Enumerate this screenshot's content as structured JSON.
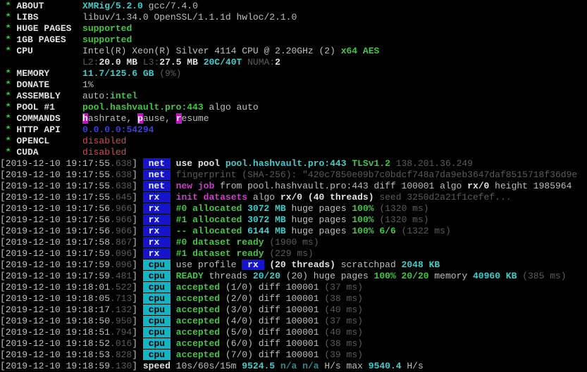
{
  "palette": {
    "background": "#000000",
    "w": "#bfbfbf",
    "wb": "#e2e2e2",
    "g": "#3fbf3f",
    "gb": "#44c644",
    "c": "#35b0b0",
    "cb": "#42cccc",
    "d": "#5c5c5c",
    "dc": "#2e8b8b",
    "mb": "#cc3fcc",
    "r": "#cf4f4f",
    "bl": "#4040d0",
    "bnetBg": "#1414cc",
    "bnetFg": "#efefef",
    "bcpuBg": "#12b5c3",
    "bcpuFg": "#000000",
    "bmagBg": "#c314c3",
    "bmagFg": "#efefef"
  },
  "terminal": {
    "lines": [
      {
        "segments": [
          {
            "s": "gb",
            "t": " * "
          },
          {
            "s": "wb",
            "t": "ABOUT       "
          },
          {
            "s": "cb",
            "t": "XMRig/5.2.0"
          },
          {
            "s": "w",
            "t": " gcc/7.4.0"
          }
        ]
      },
      {
        "segments": [
          {
            "s": "gb",
            "t": " * "
          },
          {
            "s": "wb",
            "t": "LIBS        "
          },
          {
            "s": "w",
            "t": "libuv/1.34.0 OpenSSL/1.1.1d hwloc/2.1.0"
          }
        ]
      },
      {
        "segments": [
          {
            "s": "gb",
            "t": " * "
          },
          {
            "s": "wb",
            "t": "HUGE PAGES  "
          },
          {
            "s": "gb",
            "t": "supported"
          }
        ]
      },
      {
        "segments": [
          {
            "s": "gb",
            "t": " * "
          },
          {
            "s": "wb",
            "t": "1GB PAGES   "
          },
          {
            "s": "gb",
            "t": "supported"
          }
        ]
      },
      {
        "segments": [
          {
            "s": "gb",
            "t": " * "
          },
          {
            "s": "wb",
            "t": "CPU         "
          },
          {
            "s": "w",
            "t": "Intel(R) Xeon(R) Silver 4114 CPU @ 2.20GHz (2) "
          },
          {
            "s": "gb",
            "t": "x64 AES"
          }
        ]
      },
      {
        "segments": [
          {
            "s": "w",
            "t": "               "
          },
          {
            "s": "d",
            "t": "L2:"
          },
          {
            "s": "wb",
            "t": "20.0 MB "
          },
          {
            "s": "d",
            "t": "L3:"
          },
          {
            "s": "wb",
            "t": "27.5 MB "
          },
          {
            "s": "cb",
            "t": "20C/40T "
          },
          {
            "s": "d",
            "t": "NUMA:"
          },
          {
            "s": "wb",
            "t": "2"
          }
        ]
      },
      {
        "segments": [
          {
            "s": "gb",
            "t": " * "
          },
          {
            "s": "wb",
            "t": "MEMORY      "
          },
          {
            "s": "cb",
            "t": "11.7/125.6 GB "
          },
          {
            "s": "d",
            "t": "(9%)"
          }
        ]
      },
      {
        "segments": [
          {
            "s": "gb",
            "t": " * "
          },
          {
            "s": "wb",
            "t": "DONATE      "
          },
          {
            "s": "w",
            "t": "1%"
          }
        ]
      },
      {
        "segments": [
          {
            "s": "gb",
            "t": " * "
          },
          {
            "s": "wb",
            "t": "ASSEMBLY    "
          },
          {
            "s": "w",
            "t": "auto:"
          },
          {
            "s": "gb",
            "t": "intel"
          }
        ]
      },
      {
        "segments": [
          {
            "s": "gb",
            "t": " * "
          },
          {
            "s": "wb",
            "t": "POOL #1     "
          },
          {
            "s": "gb",
            "t": "pool.hashvault.pro:443"
          },
          {
            "s": "w",
            "t": " algo auto"
          }
        ]
      },
      {
        "segments": [
          {
            "s": "gb",
            "t": " * "
          },
          {
            "s": "wb",
            "t": "COMMANDS    "
          },
          {
            "s": "bmag",
            "t": "h"
          },
          {
            "s": "w",
            "t": "ashrate, "
          },
          {
            "s": "bmag",
            "t": "p"
          },
          {
            "s": "w",
            "t": "ause, "
          },
          {
            "s": "bmag",
            "t": "r"
          },
          {
            "s": "w",
            "t": "esume"
          }
        ]
      },
      {
        "segments": [
          {
            "s": "gb",
            "t": " * "
          },
          {
            "s": "wb",
            "t": "HTTP API    "
          },
          {
            "s": "bl",
            "t": "0.0.0.0:54294"
          }
        ]
      },
      {
        "segments": [
          {
            "s": "gb",
            "t": " * "
          },
          {
            "s": "wb",
            "t": "OPENCL      "
          },
          {
            "s": "r",
            "t": "disabled"
          }
        ]
      },
      {
        "segments": [
          {
            "s": "gb",
            "t": " * "
          },
          {
            "s": "wb",
            "t": "CUDA        "
          },
          {
            "s": "r",
            "t": "disabled"
          }
        ]
      },
      {
        "segments": [
          {
            "s": "w",
            "t": "[2019-12-10 19:17:55"
          },
          {
            "s": "d",
            "t": ".638"
          },
          {
            "s": "w",
            "t": "] "
          },
          {
            "s": "bnet",
            "t": " net "
          },
          {
            "s": "wb",
            "t": " use pool "
          },
          {
            "s": "cb",
            "t": "pool.hashvault.pro:443 "
          },
          {
            "s": "gb",
            "t": "TLSv1.2 "
          },
          {
            "s": "d",
            "t": "138.201.36.249"
          }
        ]
      },
      {
        "segments": [
          {
            "s": "w",
            "t": "[2019-12-10 19:17:55"
          },
          {
            "s": "d",
            "t": ".638"
          },
          {
            "s": "w",
            "t": "] "
          },
          {
            "s": "bnet",
            "t": " net "
          },
          {
            "s": "d",
            "t": " fingerprint (SHA-256): \"420c7850e09b7c0bdcf748a7da9eb3647daf8515718f36d9e"
          }
        ]
      },
      {
        "segments": [
          {
            "s": "w",
            "t": "[2019-12-10 19:17:55"
          },
          {
            "s": "d",
            "t": ".638"
          },
          {
            "s": "w",
            "t": "] "
          },
          {
            "s": "bnet",
            "t": " net "
          },
          {
            "s": "mb",
            "t": " new job"
          },
          {
            "s": "w",
            "t": " from pool.hashvault.pro:443 diff 100001 algo "
          },
          {
            "s": "wb",
            "t": "rx/0"
          },
          {
            "s": "w",
            "t": " height 1985964"
          }
        ]
      },
      {
        "segments": [
          {
            "s": "w",
            "t": "[2019-12-10 19:17:55"
          },
          {
            "s": "d",
            "t": ".645"
          },
          {
            "s": "w",
            "t": "] "
          },
          {
            "s": "bnet",
            "t": " rx  "
          },
          {
            "s": "mb",
            "t": " init datasets"
          },
          {
            "s": "w",
            "t": " algo "
          },
          {
            "s": "wb",
            "t": "rx/0 (40 threads)"
          },
          {
            "s": "d",
            "t": " seed 3250d2a21f1cefef..."
          }
        ]
      },
      {
        "segments": [
          {
            "s": "w",
            "t": "[2019-12-10 19:17:56"
          },
          {
            "s": "d",
            "t": ".966"
          },
          {
            "s": "w",
            "t": "] "
          },
          {
            "s": "bnet",
            "t": " rx  "
          },
          {
            "s": "gb",
            "t": " #0 allocated "
          },
          {
            "s": "cb",
            "t": "3072 MB "
          },
          {
            "s": "w",
            "t": "huge pages "
          },
          {
            "s": "gb",
            "t": "100% "
          },
          {
            "s": "d",
            "t": "(1320 ms)"
          }
        ]
      },
      {
        "segments": [
          {
            "s": "w",
            "t": "[2019-12-10 19:17:56"
          },
          {
            "s": "d",
            "t": ".966"
          },
          {
            "s": "w",
            "t": "] "
          },
          {
            "s": "bnet",
            "t": " rx  "
          },
          {
            "s": "gb",
            "t": " #1 allocated "
          },
          {
            "s": "cb",
            "t": "3072 MB "
          },
          {
            "s": "w",
            "t": "huge pages "
          },
          {
            "s": "gb",
            "t": "100% "
          },
          {
            "s": "d",
            "t": "(1320 ms)"
          }
        ]
      },
      {
        "segments": [
          {
            "s": "w",
            "t": "[2019-12-10 19:17:56"
          },
          {
            "s": "d",
            "t": ".966"
          },
          {
            "s": "w",
            "t": "] "
          },
          {
            "s": "bnet",
            "t": " rx  "
          },
          {
            "s": "gb",
            "t": " -- allocated "
          },
          {
            "s": "cb",
            "t": "6144 MB "
          },
          {
            "s": "w",
            "t": "huge pages "
          },
          {
            "s": "gb",
            "t": "100% 6/6 "
          },
          {
            "s": "d",
            "t": "(1322 ms)"
          }
        ]
      },
      {
        "segments": [
          {
            "s": "w",
            "t": "[2019-12-10 19:17:58"
          },
          {
            "s": "d",
            "t": ".867"
          },
          {
            "s": "w",
            "t": "] "
          },
          {
            "s": "bnet",
            "t": " rx  "
          },
          {
            "s": "gb",
            "t": " #0 dataset ready "
          },
          {
            "s": "d",
            "t": "(1900 ms)"
          }
        ]
      },
      {
        "segments": [
          {
            "s": "w",
            "t": "[2019-12-10 19:17:59"
          },
          {
            "s": "d",
            "t": ".096"
          },
          {
            "s": "w",
            "t": "] "
          },
          {
            "s": "bnet",
            "t": " rx  "
          },
          {
            "s": "gb",
            "t": " #1 dataset ready "
          },
          {
            "s": "d",
            "t": "(229 ms)"
          }
        ]
      },
      {
        "segments": [
          {
            "s": "w",
            "t": "[2019-12-10 19:17:59"
          },
          {
            "s": "d",
            "t": ".096"
          },
          {
            "s": "w",
            "t": "] "
          },
          {
            "s": "bcpu",
            "t": " cpu "
          },
          {
            "s": "w",
            "t": " use profile "
          },
          {
            "s": "bnet",
            "t": " rx "
          },
          {
            "s": "wb",
            "t": " (20 threads)"
          },
          {
            "s": "w",
            "t": " scratchpad "
          },
          {
            "s": "cb",
            "t": "2048 KB"
          }
        ]
      },
      {
        "segments": [
          {
            "s": "w",
            "t": "[2019-12-10 19:17:59"
          },
          {
            "s": "d",
            "t": ".481"
          },
          {
            "s": "w",
            "t": "] "
          },
          {
            "s": "bcpu",
            "t": " cpu "
          },
          {
            "s": "gb",
            "t": " READY"
          },
          {
            "s": "w",
            "t": " threads "
          },
          {
            "s": "cb",
            "t": "20/20"
          },
          {
            "s": "w",
            "t": " (20) huge pages "
          },
          {
            "s": "gb",
            "t": "100% 20/20"
          },
          {
            "s": "w",
            "t": " memory "
          },
          {
            "s": "cb",
            "t": "40960 KB "
          },
          {
            "s": "d",
            "t": "(385 ms)"
          }
        ]
      },
      {
        "segments": [
          {
            "s": "w",
            "t": "[2019-12-10 19:18:01"
          },
          {
            "s": "d",
            "t": ".522"
          },
          {
            "s": "w",
            "t": "] "
          },
          {
            "s": "bcpu",
            "t": " cpu "
          },
          {
            "s": "gb",
            "t": " accepted "
          },
          {
            "s": "w",
            "t": "(1/0) diff 100001 "
          },
          {
            "s": "d",
            "t": "(37 ms)"
          }
        ]
      },
      {
        "segments": [
          {
            "s": "w",
            "t": "[2019-12-10 19:18:05"
          },
          {
            "s": "d",
            "t": ".713"
          },
          {
            "s": "w",
            "t": "] "
          },
          {
            "s": "bcpu",
            "t": " cpu "
          },
          {
            "s": "gb",
            "t": " accepted "
          },
          {
            "s": "w",
            "t": "(2/0) diff 100001 "
          },
          {
            "s": "d",
            "t": "(38 ms)"
          }
        ]
      },
      {
        "segments": [
          {
            "s": "w",
            "t": "[2019-12-10 19:18:17"
          },
          {
            "s": "d",
            "t": ".132"
          },
          {
            "s": "w",
            "t": "] "
          },
          {
            "s": "bcpu",
            "t": " cpu "
          },
          {
            "s": "gb",
            "t": " accepted "
          },
          {
            "s": "w",
            "t": "(3/0) diff 100001 "
          },
          {
            "s": "d",
            "t": "(40 ms)"
          }
        ]
      },
      {
        "segments": [
          {
            "s": "w",
            "t": "[2019-12-10 19:18:50"
          },
          {
            "s": "d",
            "t": ".950"
          },
          {
            "s": "w",
            "t": "] "
          },
          {
            "s": "bcpu",
            "t": " cpu "
          },
          {
            "s": "gb",
            "t": " accepted "
          },
          {
            "s": "w",
            "t": "(4/0) diff 100001 "
          },
          {
            "s": "d",
            "t": "(37 ms)"
          }
        ]
      },
      {
        "segments": [
          {
            "s": "w",
            "t": "[2019-12-10 19:18:51"
          },
          {
            "s": "d",
            "t": ".794"
          },
          {
            "s": "w",
            "t": "] "
          },
          {
            "s": "bcpu",
            "t": " cpu "
          },
          {
            "s": "gb",
            "t": " accepted "
          },
          {
            "s": "w",
            "t": "(5/0) diff 100001 "
          },
          {
            "s": "d",
            "t": "(40 ms)"
          }
        ]
      },
      {
        "segments": [
          {
            "s": "w",
            "t": "[2019-12-10 19:18:52"
          },
          {
            "s": "d",
            "t": ".016"
          },
          {
            "s": "w",
            "t": "] "
          },
          {
            "s": "bcpu",
            "t": " cpu "
          },
          {
            "s": "gb",
            "t": " accepted "
          },
          {
            "s": "w",
            "t": "(6/0) diff 100001 "
          },
          {
            "s": "d",
            "t": "(38 ms)"
          }
        ]
      },
      {
        "segments": [
          {
            "s": "w",
            "t": "[2019-12-10 19:18:53"
          },
          {
            "s": "d",
            "t": ".828"
          },
          {
            "s": "w",
            "t": "] "
          },
          {
            "s": "bcpu",
            "t": " cpu "
          },
          {
            "s": "gb",
            "t": " accepted "
          },
          {
            "s": "w",
            "t": "(7/0) diff 100001 "
          },
          {
            "s": "d",
            "t": "(39 ms)"
          }
        ]
      },
      {
        "segments": [
          {
            "s": "w",
            "t": "[2019-12-10 19:18:59"
          },
          {
            "s": "d",
            "t": ".130"
          },
          {
            "s": "w",
            "t": "] "
          },
          {
            "s": "wb",
            "t": "speed "
          },
          {
            "s": "w",
            "t": "10s/60s/15m "
          },
          {
            "s": "cb",
            "t": "9524.5 "
          },
          {
            "s": "dc",
            "t": "n/a n/a "
          },
          {
            "s": "w",
            "t": "H/s "
          },
          {
            "s": "w",
            "t": "max "
          },
          {
            "s": "cb",
            "t": "9540.4 "
          },
          {
            "s": "w",
            "t": "H/s"
          }
        ]
      }
    ]
  }
}
